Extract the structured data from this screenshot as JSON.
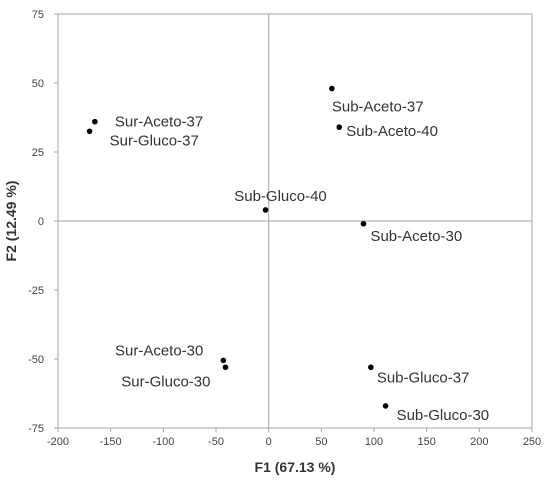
{
  "chart_data": {
    "type": "scatter",
    "title": "",
    "xlabel": "F1 (67.13 %)",
    "ylabel": "F2 (12.49 %)",
    "xlim": [
      -200,
      250
    ],
    "ylim": [
      -75,
      75
    ],
    "xticks": [
      -200,
      -150,
      -100,
      -50,
      0,
      50,
      100,
      150,
      200,
      250
    ],
    "yticks": [
      -75,
      -50,
      -25,
      0,
      25,
      50,
      75
    ],
    "grid": false,
    "zero_lines": true,
    "colors": {
      "point": "#000000",
      "frame": "#a6a6a6",
      "zero_line": "#a6a6a6",
      "text": "#333333"
    },
    "points": [
      {
        "label": "Sur-Aceto-37",
        "x": -165,
        "y": 36
      },
      {
        "label": "Sur-Gluco-37",
        "x": -170,
        "y": 32.5
      },
      {
        "label": "Sub-Aceto-37",
        "x": 60,
        "y": 48
      },
      {
        "label": "Sub-Aceto-40",
        "x": 67,
        "y": 34
      },
      {
        "label": "Sub-Gluco-40",
        "x": -3,
        "y": 4
      },
      {
        "label": "Sub-Aceto-30",
        "x": 90,
        "y": -1
      },
      {
        "label": "Sur-Aceto-30",
        "x": -43,
        "y": -50.5
      },
      {
        "label": "Sur-Gluco-30",
        "x": -41,
        "y": -53
      },
      {
        "label": "Sub-Gluco-37",
        "x": 97,
        "y": -53
      },
      {
        "label": "Sub-Gluco-30",
        "x": 111,
        "y": -67
      }
    ]
  }
}
